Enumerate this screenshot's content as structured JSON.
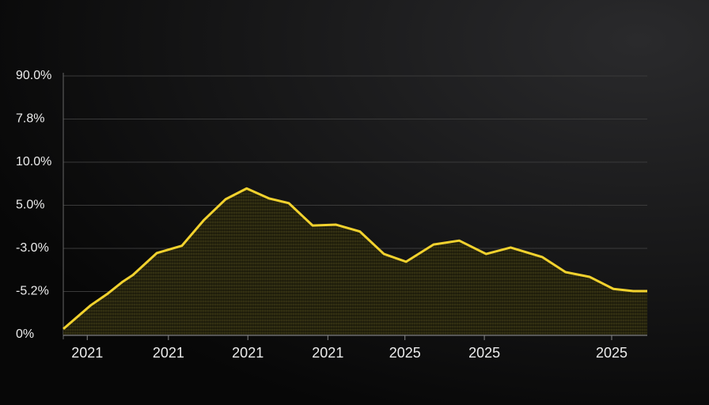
{
  "chart_data": {
    "type": "area",
    "x": [
      0,
      4.7,
      7.5,
      10.2,
      11.9,
      16,
      20.3,
      24.1,
      27.8,
      31.4,
      35.2,
      38.6,
      42.7,
      46.7,
      50.8,
      54.9,
      58.7,
      63.4,
      67.8,
      72.4,
      76.6,
      82,
      86,
      90.1,
      94.2,
      97.6,
      100
    ],
    "series": [
      {
        "color": "#f2d22e",
        "values": [
          0.13,
          0.68,
          0.94,
          1.23,
          1.38,
          1.89,
          2.06,
          2.66,
          3.14,
          3.39,
          3.16,
          3.05,
          2.53,
          2.55,
          2.39,
          1.87,
          1.69,
          2.09,
          2.18,
          1.87,
          2.02,
          1.8,
          1.45,
          1.34,
          1.06,
          1.01,
          1.01
        ]
      }
    ],
    "xlim": [
      0,
      100
    ],
    "xticks": [
      {
        "value": 4.1,
        "label": "2021"
      },
      {
        "value": 18,
        "label": "2021"
      },
      {
        "value": 31.6,
        "label": "2021"
      },
      {
        "value": 45.3,
        "label": "2021"
      },
      {
        "value": 58.5,
        "label": "2025"
      },
      {
        "value": 72.1,
        "label": "2025"
      },
      {
        "value": 93.9,
        "label": "2025"
      }
    ],
    "ylim": [
      0,
      6
    ],
    "yticks": [
      {
        "value": 6,
        "label": "90.0%"
      },
      {
        "value": 5,
        "label": "7.8%"
      },
      {
        "value": 4,
        "label": "10.0%"
      },
      {
        "value": 3,
        "label": "5.0%"
      },
      {
        "value": 2,
        "label": "-3.0%"
      },
      {
        "value": 1,
        "label": "-5.2%"
      },
      {
        "value": 0,
        "label": "0%"
      }
    ],
    "grid": true
  }
}
